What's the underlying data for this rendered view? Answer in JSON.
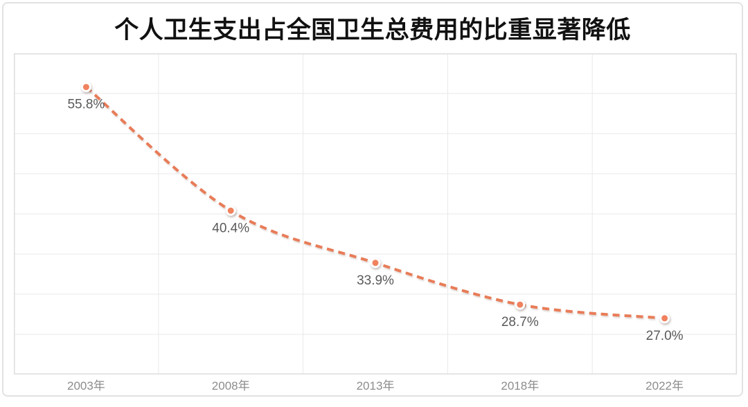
{
  "chart_data": {
    "type": "line",
    "title": "个人卫生支出占全国卫生总费用的比重显著降低",
    "categories": [
      "2003年",
      "2008年",
      "2013年",
      "2018年",
      "2022年"
    ],
    "values": [
      55.8,
      40.4,
      33.9,
      28.7,
      27.0
    ],
    "point_labels": [
      "55.8%",
      "40.4%",
      "33.9%",
      "28.7%",
      "27.0%"
    ],
    "xlabel": "",
    "ylabel": "",
    "ylim": [
      20,
      60
    ],
    "grid_step": 5,
    "grid": "on",
    "legend_position": "none",
    "line_style": "dashed",
    "colors": {
      "line": "#e87c58",
      "marker_fill": "#f0825e",
      "marker_ring": "#ffffff",
      "gridline": "#e9e9e9",
      "plot_border": "#dddddd",
      "title_text": "#111111",
      "point_label_text": "#595959",
      "axis_label_text": "#8c8c8c",
      "card_border": "#e2e2e2",
      "background": "#ffffff"
    }
  }
}
